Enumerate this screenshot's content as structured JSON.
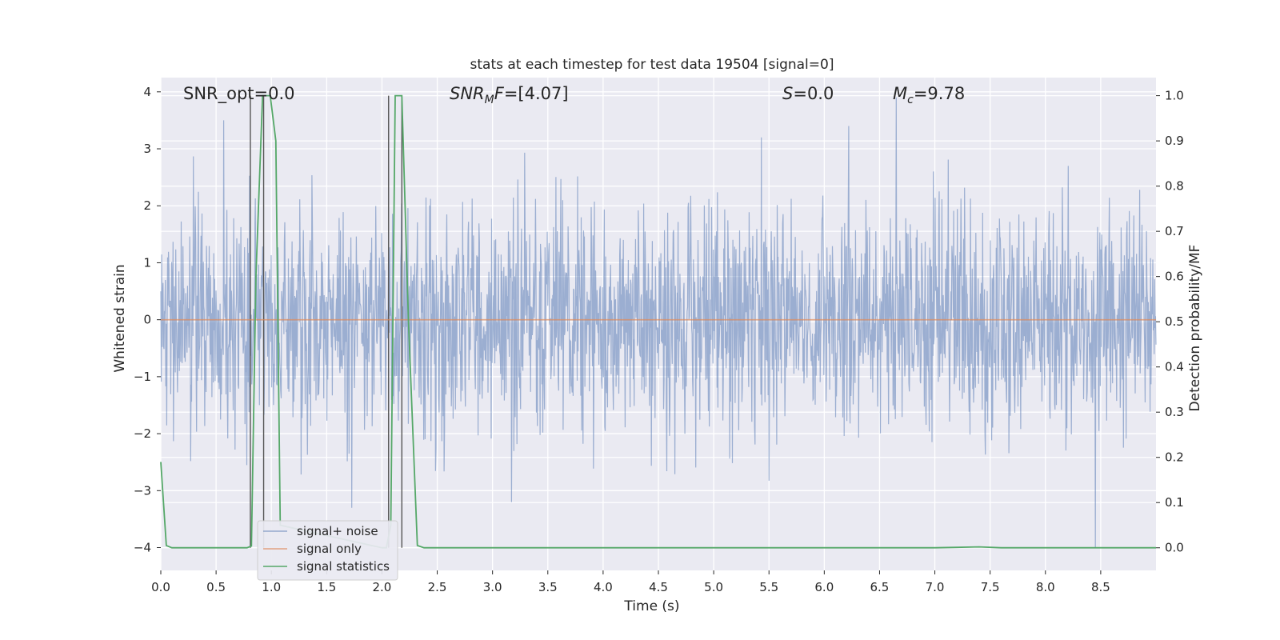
{
  "chart_data": {
    "type": "line",
    "title": "stats at each timestep for test data 19504 [signal=0]",
    "xlabel": "Time (s)",
    "ylabel_left": "Whitened strain",
    "ylabel_right": "Detection probability/MF",
    "xlim": [
      0.0,
      9.0
    ],
    "ylim_left": [
      -4.4,
      4.25
    ],
    "ylim_right": [
      -0.05,
      1.04
    ],
    "x_ticks": [
      "0.0",
      "0.5",
      "1.0",
      "1.5",
      "2.0",
      "2.5",
      "3.0",
      "3.5",
      "4.0",
      "4.5",
      "5.0",
      "5.5",
      "6.0",
      "6.5",
      "7.0",
      "7.5",
      "8.0",
      "8.5"
    ],
    "y_ticks_left": [
      "4",
      "3",
      "2",
      "1",
      "0",
      "−1",
      "−2",
      "−3",
      "−4"
    ],
    "y_ticks_right": [
      "1.0",
      "0.9",
      "0.8",
      "0.7",
      "0.6",
      "0.5",
      "0.4",
      "0.3",
      "0.2",
      "0.1",
      "0.0"
    ],
    "grid": true,
    "legend_position": "lower-left",
    "annotations": [
      {
        "text": "SNR_opt=0.0",
        "x": 0.2,
        "y": 3.9
      },
      {
        "text": "SNR_MF=[4.07]",
        "x": 2.6,
        "y": 3.9
      },
      {
        "text": "S=0.0",
        "x": 5.6,
        "y": 3.9
      },
      {
        "text": "M_c=9.78",
        "x": 6.6,
        "y": 3.9
      }
    ],
    "vertical_lines": [
      0.81,
      0.93,
      2.06,
      2.18
    ],
    "series": [
      {
        "name": "signal+ noise",
        "color": "#4c72b0",
        "axis": "left",
        "noise_std": 1.0,
        "spikes": [
          {
            "x": 0.57,
            "y": 3.5
          },
          {
            "x": 6.65,
            "y": 3.9
          },
          {
            "x": 8.45,
            "y": -4.0
          },
          {
            "x": 6.22,
            "y": 3.4
          },
          {
            "x": 5.43,
            "y": 3.2
          }
        ]
      },
      {
        "name": "signal only",
        "color": "#dd8452",
        "axis": "left",
        "x": [
          0.0,
          9.0
        ],
        "y": [
          0.0,
          0.0
        ]
      },
      {
        "name": "signal statistics",
        "color": "#55a868",
        "axis": "right",
        "x": [
          0.0,
          0.05,
          0.1,
          0.78,
          0.82,
          0.86,
          0.92,
          0.99,
          1.04,
          1.08,
          2.0,
          2.04,
          2.08,
          2.12,
          2.18,
          2.24,
          2.32,
          2.38,
          7.0,
          7.2,
          7.4,
          7.6,
          9.0
        ],
        "y": [
          0.19,
          0.005,
          0.0,
          0.0,
          0.004,
          0.6,
          1.0,
          1.0,
          0.9,
          0.05,
          0.0,
          0.0,
          0.05,
          1.0,
          1.0,
          0.5,
          0.005,
          0.0,
          0.0,
          0.001,
          0.002,
          0.0,
          0.0
        ]
      }
    ]
  }
}
